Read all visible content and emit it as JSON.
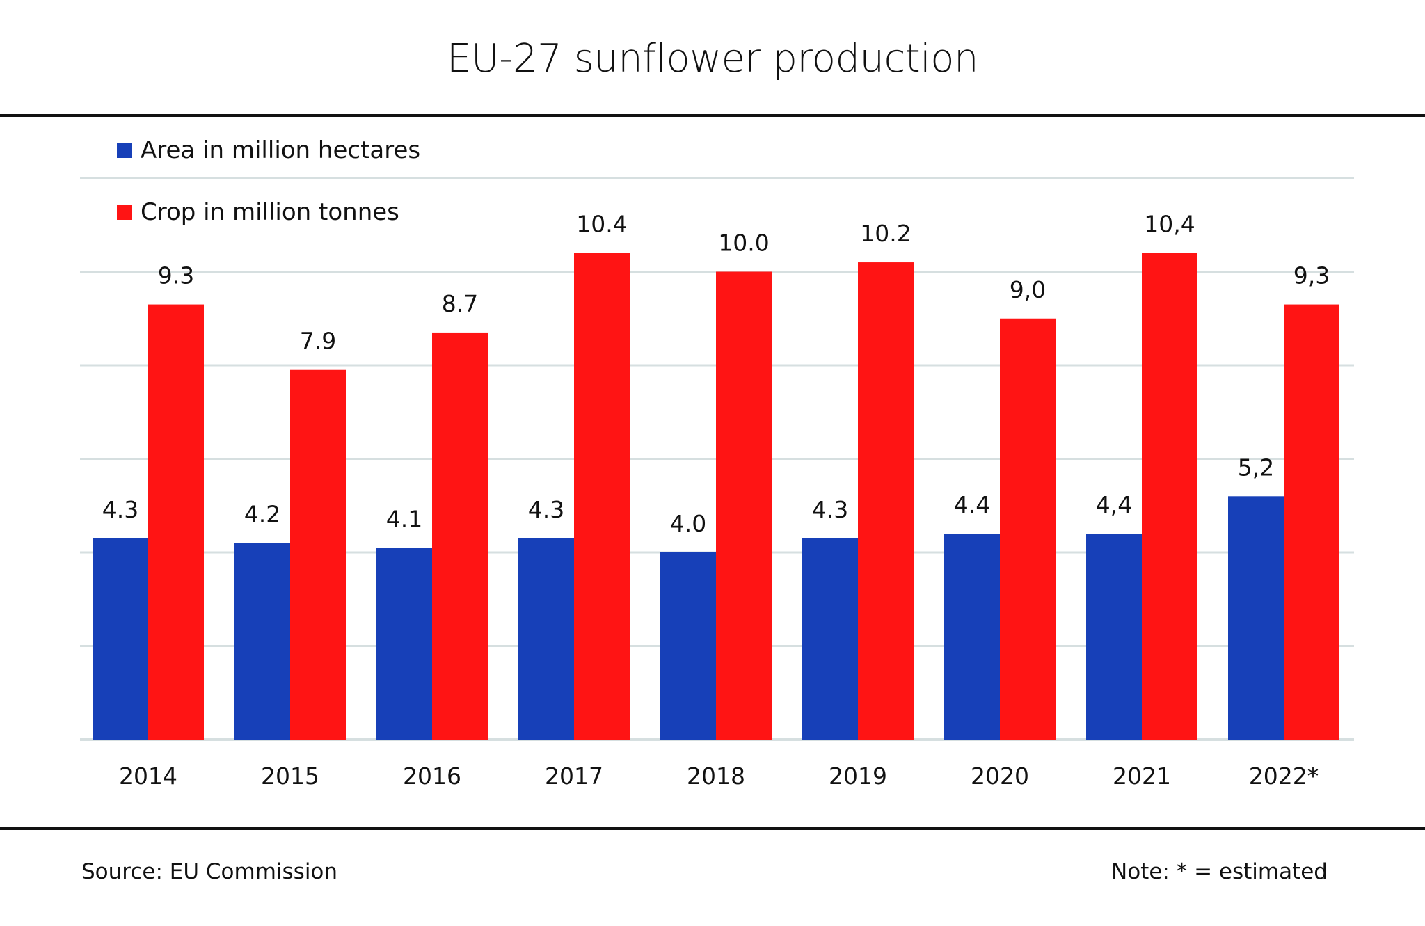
{
  "title": "EU-27 sunflower production",
  "legend": [
    {
      "label": "Area in million hectares",
      "color": "#1740b8"
    },
    {
      "label": "Crop in million tonnes",
      "color": "#ff1414"
    }
  ],
  "footer": {
    "source": "Source:  EU Commission",
    "note": "Note: * = estimated"
  },
  "chart_data": {
    "type": "bar",
    "title": "EU-27 sunflower production",
    "xlabel": "",
    "ylabel": "",
    "categories": [
      "2014",
      "2015",
      "2016",
      "2017",
      "2018",
      "2019",
      "2020",
      "2021",
      "2022*"
    ],
    "series": [
      {
        "name": "Area in million hectares",
        "color": "#1740b8",
        "values": [
          4.3,
          4.2,
          4.1,
          4.3,
          4.0,
          4.3,
          4.4,
          4.4,
          5.2
        ],
        "labels": [
          "4.3",
          "4.2",
          "4.1",
          "4.3",
          "4.0",
          "4.3",
          "4.4",
          "4,4",
          "5,2"
        ]
      },
      {
        "name": "Crop in million tonnes",
        "color": "#ff1414",
        "values": [
          9.3,
          7.9,
          8.7,
          10.4,
          10.0,
          10.2,
          9.0,
          10.4,
          9.3
        ],
        "labels": [
          "9.3",
          "7.9",
          "8.7",
          "10.4",
          "10.0",
          "10.2",
          "9,0",
          "10,4",
          "9,3"
        ]
      }
    ],
    "ylim": [
      0,
      12
    ],
    "yticks": [
      0,
      2,
      4,
      6,
      8,
      10,
      12
    ],
    "y_tick_labels_shown": false,
    "grid": true,
    "legend_position": "top-left",
    "note": "* = estimated"
  }
}
